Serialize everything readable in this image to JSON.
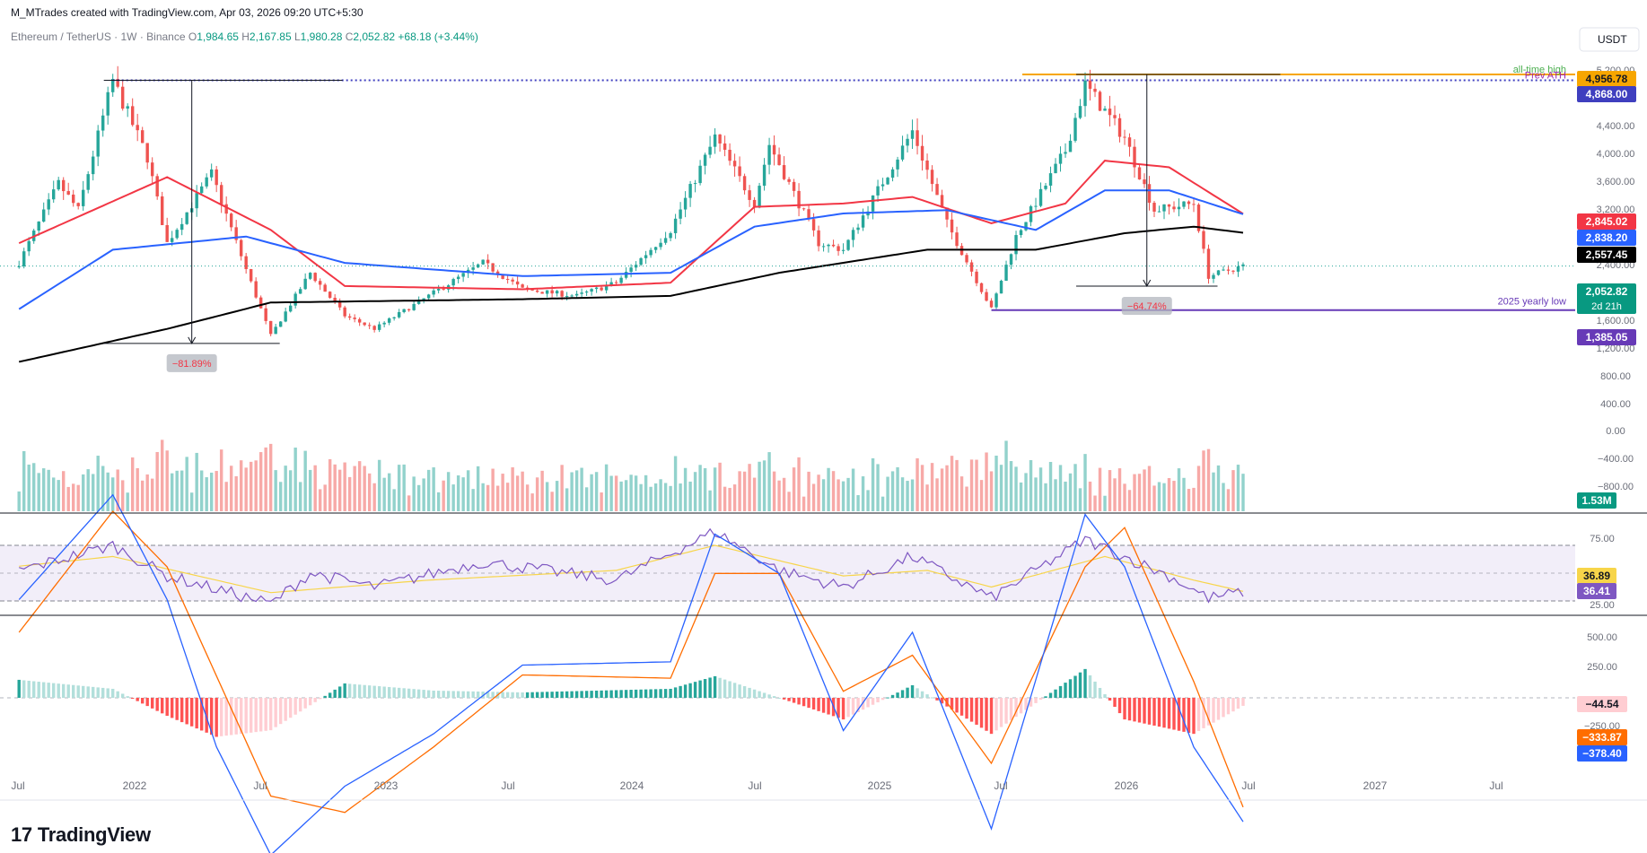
{
  "header": {
    "attribution": "M_MTrades created with TradingView.com, Apr 03, 2026 09:20 UTC+5:30"
  },
  "symbol_bar": {
    "name": "Ethereum / TetherUS · 1W · Binance",
    "o_label": "O",
    "o": "1,984.65",
    "h_label": "H",
    "h": "2,167.85",
    "l_label": "L",
    "l": "1,980.28",
    "c_label": "C",
    "c": "2,052.82",
    "change": "+68.18 (+3.44%)"
  },
  "currency_button": "USDT",
  "footer": {
    "logo_text": "TradingView",
    "logo_mark": "17"
  },
  "colors": {
    "up": "#26a69a",
    "down": "#ef5350",
    "ema_red": "#f23645",
    "ema_blue": "#2962ff",
    "ema_black": "#000000",
    "rsi": "#7e57c2",
    "rsi_ma": "#f7d54a",
    "macd": "#2962ff",
    "signal": "#ff6d00",
    "ath_line": "#f7a600",
    "prev_ath_line": "#3f3fbf",
    "yearly_low_line": "#673ab7"
  },
  "chart_data": [
    {
      "type": "candlestick",
      "title": "Ethereum / TetherUS · 1W · Binance",
      "x_ticks": [
        "Jul",
        "2022",
        "Jul",
        "2023",
        "Jul",
        "2024",
        "Jul",
        "2025",
        "Jul",
        "2026",
        "Jul",
        "2027",
        "Jul"
      ],
      "y_ticks": [
        "5,200.00",
        "4,400.00",
        "4,000.00",
        "3,600.00",
        "3,200.00",
        "2,400.00",
        "1,600.00",
        "1,200.00",
        "800.00",
        "400.00",
        "0.00",
        "−400.00",
        "−800.00"
      ],
      "ylim": [
        -900,
        5300
      ],
      "price_path": [
        [
          "2021-06-28",
          2100
        ],
        [
          "2021-08-23",
          3300
        ],
        [
          "2021-09-20",
          2900
        ],
        [
          "2021-11-08",
          4868
        ],
        [
          "2021-12-27",
          3700
        ],
        [
          "2022-01-24",
          2400
        ],
        [
          "2022-03-28",
          3450
        ],
        [
          "2022-05-16",
          2000
        ],
        [
          "2022-06-20",
          1000
        ],
        [
          "2022-08-15",
          1950
        ],
        [
          "2022-10-03",
          1300
        ],
        [
          "2022-11-14",
          1100
        ],
        [
          "2023-01-30",
          1600
        ],
        [
          "2023-04-17",
          2100
        ],
        [
          "2023-06-12",
          1700
        ],
        [
          "2023-08-28",
          1600
        ],
        [
          "2023-10-23",
          1800
        ],
        [
          "2024-01-08",
          2600
        ],
        [
          "2024-03-11",
          4000
        ],
        [
          "2024-05-06",
          3000
        ],
        [
          "2024-05-27",
          3900
        ],
        [
          "2024-08-05",
          2400
        ],
        [
          "2024-09-09",
          2300
        ],
        [
          "2024-12-16",
          4100
        ],
        [
          "2025-02-03",
          2700
        ],
        [
          "2025-04-07",
          1400
        ],
        [
          "2025-05-12",
          2500
        ],
        [
          "2025-07-21",
          3800
        ],
        [
          "2025-08-18",
          4800
        ],
        [
          "2025-10-13",
          4000
        ],
        [
          "2025-11-24",
          2900
        ],
        [
          "2026-01-19",
          3000
        ],
        [
          "2026-02-09",
          1900
        ],
        [
          "2026-03-30",
          2052.82
        ]
      ],
      "series": [
        {
          "name": "EMA (red)",
          "points": [
            [
              "2021-06-28",
              2400
            ],
            [
              "2022-01-24",
              3400
            ],
            [
              "2022-06-20",
              2600
            ],
            [
              "2022-10-03",
              1750
            ],
            [
              "2023-06-12",
              1700
            ],
            [
              "2024-01-08",
              1800
            ],
            [
              "2024-05-06",
              2950
            ],
            [
              "2024-09-09",
              3000
            ],
            [
              "2024-12-16",
              3100
            ],
            [
              "2025-04-07",
              2700
            ],
            [
              "2025-07-21",
              3000
            ],
            [
              "2025-09-15",
              3650
            ],
            [
              "2025-12-15",
              3550
            ],
            [
              "2026-03-30",
              2845.02
            ]
          ]
        },
        {
          "name": "EMA (blue)",
          "points": [
            [
              "2021-06-28",
              1400
            ],
            [
              "2021-11-08",
              2300
            ],
            [
              "2022-05-16",
              2500
            ],
            [
              "2022-10-03",
              2100
            ],
            [
              "2023-06-12",
              1900
            ],
            [
              "2024-01-08",
              1950
            ],
            [
              "2024-05-06",
              2650
            ],
            [
              "2024-09-09",
              2850
            ],
            [
              "2025-02-03",
              2900
            ],
            [
              "2025-06-09",
              2600
            ],
            [
              "2025-09-15",
              3200
            ],
            [
              "2025-12-15",
              3200
            ],
            [
              "2026-03-30",
              2838.2
            ]
          ]
        },
        {
          "name": "EMA (black)",
          "points": [
            [
              "2021-06-28",
              600
            ],
            [
              "2022-01-24",
              1100
            ],
            [
              "2022-06-20",
              1500
            ],
            [
              "2023-06-12",
              1550
            ],
            [
              "2024-01-08",
              1600
            ],
            [
              "2024-06-10",
              1950
            ],
            [
              "2025-01-06",
              2300
            ],
            [
              "2025-06-09",
              2300
            ],
            [
              "2025-10-13",
              2550
            ],
            [
              "2026-01-19",
              2650
            ],
            [
              "2026-03-30",
              2557.45
            ]
          ]
        }
      ],
      "levels": [
        {
          "label": "all-time high",
          "value": 4956.78,
          "price_label": "4,956.78"
        },
        {
          "label": "Prev ATH",
          "value": 4868.0,
          "price_label": "4,868.00"
        },
        {
          "label": "2025 yearly low",
          "value": 1385.05,
          "price_label": "1,385.05"
        }
      ],
      "current_price": {
        "label": "2,052.82",
        "countdown": "2d 21h"
      },
      "ema_labels": [
        "2,845.02",
        "2,838.20",
        "2,557.45"
      ],
      "drawdowns": [
        {
          "label": "−81.89%",
          "from_date": "2021-11-08",
          "from": 4868,
          "to_date": "2022-06-20",
          "to": 880
        },
        {
          "label": "−64.74%",
          "from_date": "2025-08-18",
          "from": 4956.78,
          "to_date": "2026-02-09",
          "to": 1748
        }
      ],
      "volume": {
        "last_label": "1.53M"
      }
    },
    {
      "type": "line",
      "name": "RSI",
      "y_ticks": [
        "75.00",
        "25.00"
      ],
      "ylim": [
        20,
        80
      ],
      "bands": {
        "upper": 70,
        "mid": 50,
        "lower": 30
      },
      "values_label": {
        "rsi_ma": "36.89",
        "rsi": "36.41"
      },
      "rsi_path": [
        [
          "2021-06-28",
          52
        ],
        [
          "2021-11-08",
          70
        ],
        [
          "2022-01-24",
          48
        ],
        [
          "2022-06-20",
          28
        ],
        [
          "2022-08-15",
          50
        ],
        [
          "2022-11-14",
          40
        ],
        [
          "2023-04-17",
          58
        ],
        [
          "2023-10-23",
          45
        ],
        [
          "2024-03-11",
          80
        ],
        [
          "2024-06-10",
          52
        ],
        [
          "2024-09-09",
          40
        ],
        [
          "2024-12-16",
          62
        ],
        [
          "2025-04-07",
          32
        ],
        [
          "2025-08-18",
          74
        ],
        [
          "2025-12-15",
          48
        ],
        [
          "2026-02-09",
          32
        ],
        [
          "2026-03-30",
          36.41
        ]
      ],
      "ma_path": [
        [
          "2021-06-28",
          55
        ],
        [
          "2021-11-08",
          62
        ],
        [
          "2022-06-20",
          36
        ],
        [
          "2023-01-30",
          45
        ],
        [
          "2023-10-23",
          52
        ],
        [
          "2024-03-11",
          70
        ],
        [
          "2024-09-09",
          48
        ],
        [
          "2025-01-06",
          52
        ],
        [
          "2025-04-07",
          40
        ],
        [
          "2025-09-15",
          62
        ],
        [
          "2026-01-19",
          45
        ],
        [
          "2026-03-30",
          36.89
        ]
      ]
    },
    {
      "type": "bar",
      "name": "MACD",
      "y_ticks": [
        "500.00",
        "250.00",
        "−250.00"
      ],
      "ylim": [
        -500,
        700
      ],
      "values_label": {
        "histogram": "−44.54",
        "signal": "−333.87",
        "macd": "−378.40"
      },
      "macd_path": [
        [
          "2021-06-28",
          300
        ],
        [
          "2021-11-08",
          620
        ],
        [
          "2022-01-24",
          300
        ],
        [
          "2022-04-04",
          -150
        ],
        [
          "2022-06-20",
          -480
        ],
        [
          "2022-10-03",
          -270
        ],
        [
          "2023-02-06",
          -110
        ],
        [
          "2023-06-12",
          100
        ],
        [
          "2024-01-08",
          110
        ],
        [
          "2024-03-11",
          500
        ],
        [
          "2024-06-10",
          380
        ],
        [
          "2024-09-09",
          -100
        ],
        [
          "2024-12-16",
          200
        ],
        [
          "2025-04-07",
          -400
        ],
        [
          "2025-08-18",
          560
        ],
        [
          "2025-10-13",
          400
        ],
        [
          "2026-01-19",
          -150
        ],
        [
          "2026-03-30",
          -378.4
        ]
      ],
      "signal_path": [
        [
          "2021-06-28",
          200
        ],
        [
          "2021-11-08",
          570
        ],
        [
          "2022-01-24",
          400
        ],
        [
          "2022-06-20",
          -300
        ],
        [
          "2022-10-03",
          -350
        ],
        [
          "2023-02-06",
          -150
        ],
        [
          "2023-06-12",
          70
        ],
        [
          "2024-01-08",
          60
        ],
        [
          "2024-03-11",
          380
        ],
        [
          "2024-06-10",
          380
        ],
        [
          "2024-09-09",
          20
        ],
        [
          "2024-12-16",
          130
        ],
        [
          "2025-04-07",
          -200
        ],
        [
          "2025-08-18",
          400
        ],
        [
          "2025-10-13",
          520
        ],
        [
          "2026-01-19",
          50
        ],
        [
          "2026-03-30",
          -333.87
        ]
      ]
    }
  ]
}
